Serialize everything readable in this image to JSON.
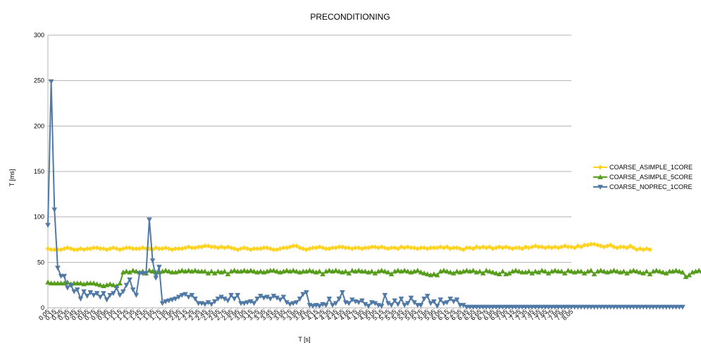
{
  "chart_data": {
    "type": "line",
    "title": "PRECONDITIONING",
    "xlabel": "T [s]",
    "ylabel": "T [ms]",
    "ylim": [
      0,
      300
    ],
    "yticks": [
      0,
      50,
      100,
      150,
      200,
      250,
      300
    ],
    "xlim": [
      0.05,
      8.05
    ],
    "xstep": 0.05,
    "xtick_step": 0.1,
    "grid": "horizontal",
    "legend_position": "right",
    "series": [
      {
        "name": "COARSE_ASIMPLE_1CORE",
        "color": "#ffd320",
        "marker": "diamond",
        "values": [
          65,
          64,
          64,
          64,
          64,
          65,
          66,
          65,
          64,
          64,
          65,
          64,
          65,
          65,
          66,
          66,
          65,
          65,
          64,
          65,
          66,
          65,
          64,
          65,
          66,
          66,
          65,
          65,
          65,
          66,
          65,
          65,
          64,
          66,
          65,
          65,
          66,
          65,
          64,
          65,
          65,
          65,
          66,
          67,
          66,
          66,
          67,
          67,
          68,
          68,
          67,
          67,
          66,
          67,
          66,
          67,
          66,
          65,
          64,
          65,
          66,
          65,
          64,
          65,
          65,
          65,
          66,
          66,
          65,
          64,
          64,
          65,
          66,
          66,
          67,
          68,
          68,
          66,
          65,
          64,
          65,
          66,
          66,
          67,
          66,
          65,
          65,
          66,
          66,
          67,
          67,
          66,
          66,
          65,
          66,
          66,
          65,
          66,
          66,
          67,
          67,
          66,
          67,
          66,
          65,
          66,
          66,
          65,
          67,
          66,
          67,
          66,
          66,
          65,
          66,
          66,
          65,
          66,
          66,
          66,
          67,
          66,
          67,
          65,
          66,
          66,
          65,
          64,
          66,
          66,
          65,
          67,
          66,
          67,
          66,
          67,
          65,
          66,
          67,
          66,
          67,
          66,
          65,
          66,
          66,
          65,
          67,
          66,
          67,
          68,
          67,
          67,
          66,
          67,
          66,
          67,
          66,
          67,
          68,
          67,
          67,
          66,
          68,
          67,
          69,
          69,
          70,
          70,
          69,
          68,
          67,
          68,
          69,
          67,
          66,
          67,
          67,
          66,
          68,
          66,
          64,
          65,
          64,
          65,
          64
        ]
      },
      {
        "name": "COARSE_ASIMPLE_5CORE",
        "color": "#579d1c",
        "marker": "triangle-up",
        "values": [
          28,
          27,
          27,
          27,
          27,
          27,
          28,
          26,
          27,
          27,
          27,
          26,
          27,
          27,
          27,
          26,
          25,
          24,
          25,
          26,
          25,
          24,
          27,
          39,
          40,
          39,
          41,
          40,
          39,
          40,
          38,
          41,
          40,
          39,
          39,
          40,
          41,
          40,
          39,
          39,
          40,
          41,
          40,
          41,
          40,
          41,
          40,
          40,
          40,
          38,
          40,
          38,
          40,
          39,
          40,
          37,
          40,
          41,
          40,
          40,
          41,
          40,
          41,
          40,
          39,
          40,
          39,
          40,
          41,
          41,
          40,
          39,
          40,
          41,
          40,
          41,
          40,
          39,
          40,
          40,
          41,
          40,
          39,
          40,
          37,
          40,
          41,
          40,
          41,
          40,
          39,
          40,
          38,
          41,
          40,
          41,
          40,
          40,
          39,
          40,
          38,
          40,
          41,
          40,
          39,
          37,
          40,
          41,
          40,
          41,
          40,
          39,
          40,
          41,
          39,
          38,
          37,
          36,
          37,
          36,
          40,
          41,
          40,
          39,
          38,
          40,
          39,
          40,
          41,
          40,
          41,
          39,
          40,
          38,
          41,
          40,
          39,
          38,
          37,
          40,
          37,
          38,
          40,
          41,
          40,
          39,
          39,
          40,
          38,
          40,
          39,
          41,
          40,
          38,
          40,
          41,
          40,
          40,
          38,
          41,
          40,
          39,
          40,
          40,
          38,
          40,
          41,
          37,
          40,
          41,
          40,
          39,
          40,
          41,
          40,
          39,
          40,
          38,
          40,
          41,
          40,
          39,
          38,
          40,
          37,
          40,
          41,
          40,
          39,
          38,
          40,
          40,
          41,
          40,
          39,
          34,
          36,
          39,
          40,
          41,
          40,
          38,
          39,
          40,
          38
        ]
      },
      {
        "name": "COARSE_NOPREC_1CORE",
        "color": "#4f79a6",
        "marker": "triangle-down",
        "values": [
          91,
          249,
          108,
          44,
          35,
          35,
          22,
          25,
          18,
          20,
          10,
          18,
          13,
          17,
          14,
          16,
          12,
          16,
          9,
          14,
          16,
          22,
          14,
          18,
          25,
          31,
          20,
          14,
          38,
          38,
          38,
          97,
          52,
          33,
          45,
          5,
          7,
          8,
          9,
          10,
          12,
          14,
          15,
          12,
          14,
          10,
          5,
          5,
          4,
          6,
          4,
          7,
          10,
          12,
          10,
          8,
          14,
          10,
          14,
          5,
          5,
          6,
          7,
          5,
          10,
          13,
          11,
          12,
          10,
          13,
          11,
          9,
          12,
          6,
          4,
          5,
          6,
          10,
          15,
          17,
          3,
          2,
          3,
          2,
          4,
          3,
          10,
          3,
          5,
          10,
          17,
          6,
          5,
          9,
          7,
          6,
          8,
          4,
          2,
          6,
          5,
          3,
          2,
          14,
          5,
          3,
          8,
          4,
          10,
          3,
          5,
          11,
          6,
          3,
          3,
          10,
          13,
          5,
          7,
          2,
          9,
          5,
          6,
          10,
          7,
          9,
          3,
          3,
          1,
          1,
          1,
          1,
          1,
          1,
          1,
          1,
          1,
          1,
          1,
          1,
          1,
          1,
          1,
          1,
          1,
          1,
          1,
          1,
          1,
          1,
          1,
          1,
          1,
          1,
          1,
          1,
          1,
          1,
          1,
          1,
          1,
          1,
          1,
          1,
          1,
          1,
          1,
          1,
          1,
          1,
          1,
          1,
          1,
          1,
          1,
          1,
          1,
          1,
          1,
          1,
          1,
          1,
          1,
          1,
          1,
          1,
          1,
          1,
          1,
          1,
          1,
          1,
          1,
          1,
          1
        ]
      }
    ]
  }
}
